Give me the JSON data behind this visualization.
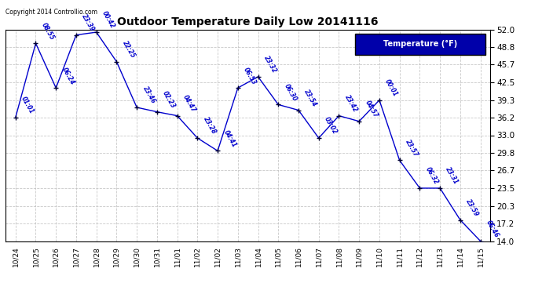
{
  "title": "Outdoor Temperature Daily Low 20141116",
  "legend_label": "Temperature (°F)",
  "copyright": "Copyright 2014 Controllio.com",
  "line_color": "#0000CD",
  "marker_color": "#000033",
  "background_color": "#ffffff",
  "grid_color": "#bbbbbb",
  "ylim": [
    14.0,
    52.0
  ],
  "yticks": [
    14.0,
    17.2,
    20.3,
    23.5,
    26.7,
    29.8,
    33.0,
    36.2,
    39.3,
    42.5,
    45.7,
    48.8,
    52.0
  ],
  "data": [
    {
      "x": 0,
      "date": "10/24",
      "temp": 36.2,
      "time": "01:01"
    },
    {
      "x": 1,
      "date": "10/25",
      "temp": 49.5,
      "time": "08:55"
    },
    {
      "x": 2,
      "date": "10/26",
      "temp": 41.5,
      "time": "06:24"
    },
    {
      "x": 3,
      "date": "10/27",
      "temp": 51.0,
      "time": "23:39"
    },
    {
      "x": 4,
      "date": "10/28",
      "temp": 51.5,
      "time": "00:42"
    },
    {
      "x": 5,
      "date": "10/29",
      "temp": 46.2,
      "time": "22:25"
    },
    {
      "x": 6,
      "date": "10/30",
      "temp": 38.0,
      "time": "23:46"
    },
    {
      "x": 7,
      "date": "10/31",
      "temp": 37.2,
      "time": "02:23"
    },
    {
      "x": 8,
      "date": "11/01",
      "temp": 36.5,
      "time": "04:47"
    },
    {
      "x": 9,
      "date": "11/02",
      "temp": 32.5,
      "time": "23:28"
    },
    {
      "x": 10,
      "date": "11/02",
      "temp": 30.2,
      "time": "04:41"
    },
    {
      "x": 11,
      "date": "11/03",
      "temp": 41.5,
      "time": "06:53"
    },
    {
      "x": 12,
      "date": "11/04",
      "temp": 43.5,
      "time": "23:32"
    },
    {
      "x": 13,
      "date": "11/05",
      "temp": 38.5,
      "time": "06:30"
    },
    {
      "x": 14,
      "date": "11/06",
      "temp": 37.5,
      "time": "23:54"
    },
    {
      "x": 15,
      "date": "11/07",
      "temp": 32.5,
      "time": "03:02"
    },
    {
      "x": 16,
      "date": "11/08",
      "temp": 36.5,
      "time": "23:42"
    },
    {
      "x": 17,
      "date": "11/09",
      "temp": 35.5,
      "time": "04:57"
    },
    {
      "x": 18,
      "date": "11/10",
      "temp": 39.3,
      "time": "00:01"
    },
    {
      "x": 19,
      "date": "11/11",
      "temp": 28.5,
      "time": "23:57"
    },
    {
      "x": 20,
      "date": "11/12",
      "temp": 23.5,
      "time": "06:32"
    },
    {
      "x": 21,
      "date": "11/13",
      "temp": 23.5,
      "time": "23:31"
    },
    {
      "x": 22,
      "date": "11/14",
      "temp": 17.8,
      "time": "23:59"
    },
    {
      "x": 23,
      "date": "11/15",
      "temp": 14.0,
      "time": "06:46"
    }
  ],
  "xtick_labels": [
    "10/24",
    "10/25",
    "10/26",
    "10/27",
    "10/28",
    "10/29",
    "10/30",
    "10/31",
    "11/01",
    "11/02",
    "11/02",
    "11/03",
    "11/04",
    "11/05",
    "11/06",
    "11/07",
    "11/08",
    "11/09",
    "11/10",
    "11/11",
    "11/12",
    "11/13",
    "11/14",
    "11/15"
  ]
}
